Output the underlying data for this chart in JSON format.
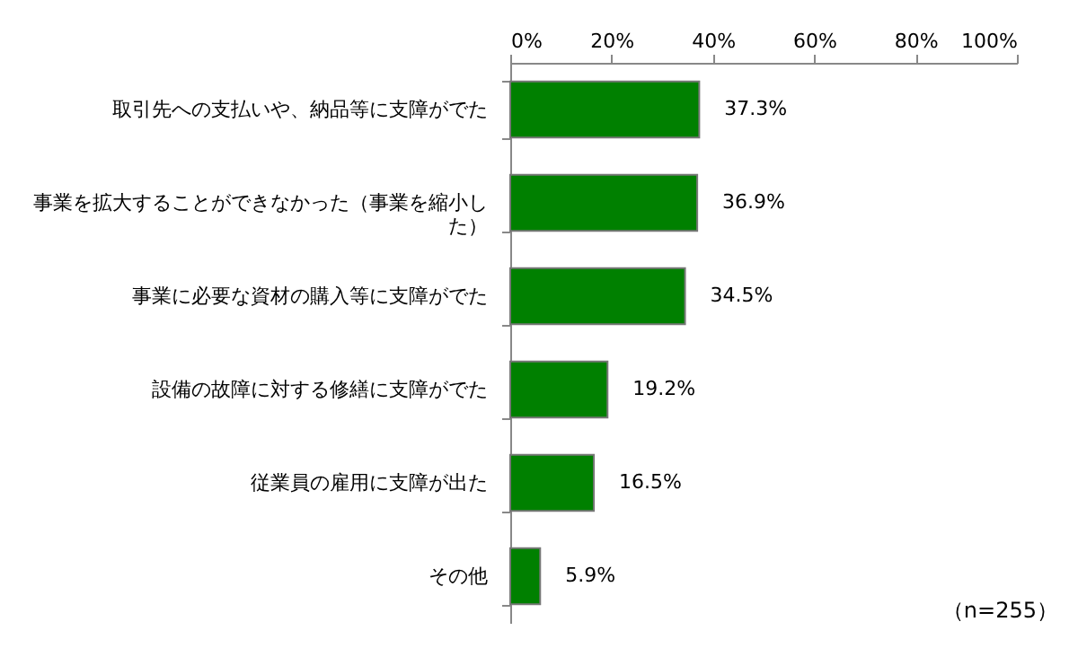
{
  "chart_data": {
    "type": "bar",
    "orientation": "horizontal",
    "categories": [
      "取引先への支払いや、納品等に支障がでた",
      "事業を拡大することができなかった（事業を縮小した）",
      "事業に必要な資材の購入等に支障がでた",
      "設備の故障に対する修繕に支障がでた",
      "従業員の雇用に支障が出た",
      "その他"
    ],
    "values": [
      37.3,
      36.9,
      34.5,
      19.2,
      16.5,
      5.9
    ],
    "value_labels": [
      "37.3%",
      "36.9%",
      "34.5%",
      "19.2%",
      "16.5%",
      "5.9%"
    ],
    "color": "#008000",
    "xlim": [
      0,
      100
    ],
    "xticks": [
      {
        "value": 0,
        "label": "0%"
      },
      {
        "value": 20,
        "label": "20%"
      },
      {
        "value": 40,
        "label": "40%"
      },
      {
        "value": 60,
        "label": "60%"
      },
      {
        "value": 80,
        "label": "80%"
      },
      {
        "value": 100,
        "label": "100%"
      }
    ],
    "grid": false,
    "annotations": [
      "（n=255）"
    ]
  }
}
